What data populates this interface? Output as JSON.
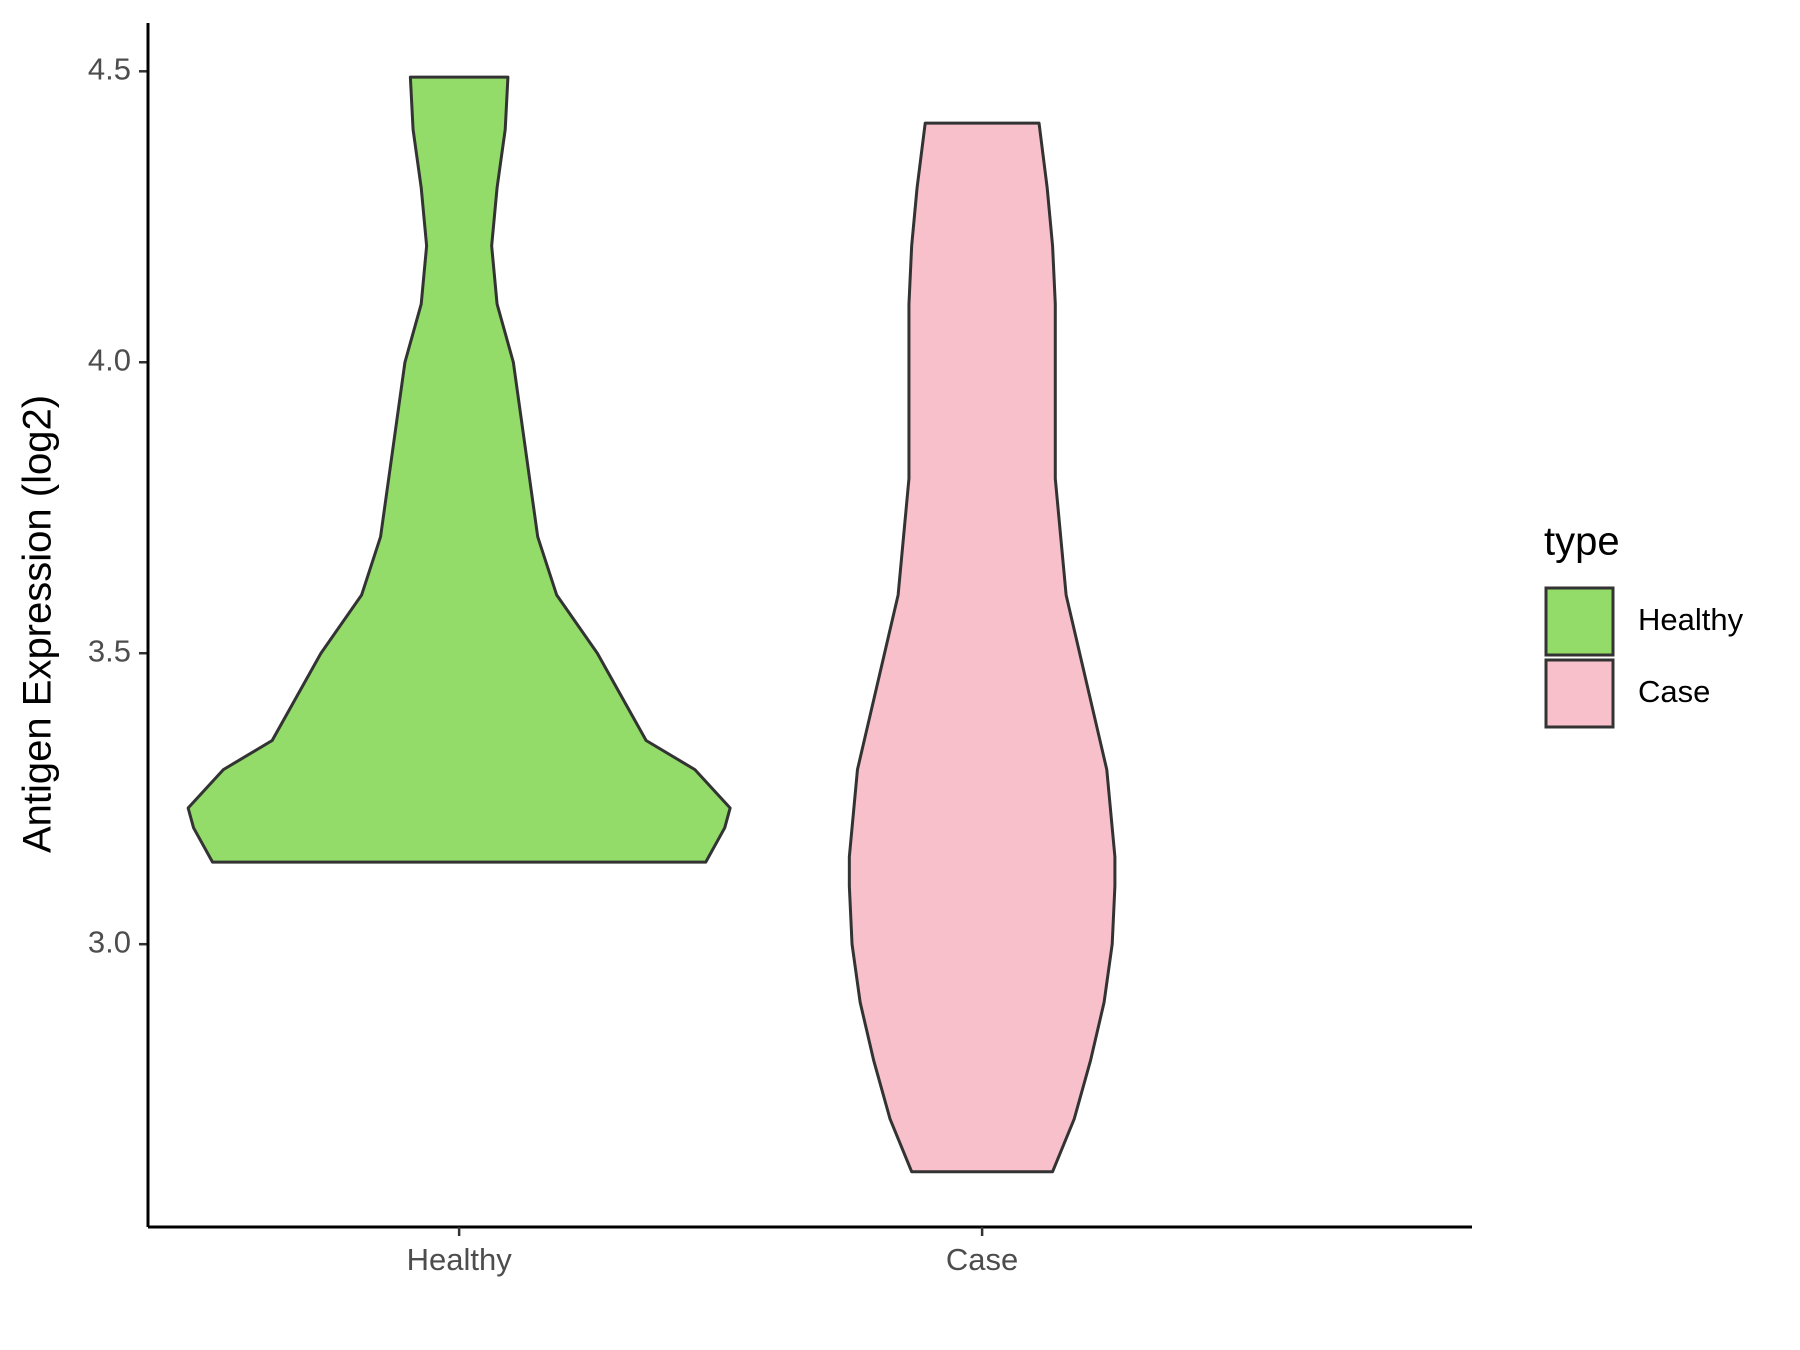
{
  "chart_data": {
    "type": "violin",
    "y_label": "Antigen Expression (log2)",
    "categories": [
      "Healthy",
      "Case"
    ],
    "legend_title": "type",
    "ylim": [
      2.514,
      4.583
    ],
    "yticks": [
      {
        "value": 3,
        "label": "3.0"
      },
      {
        "value": 3.5,
        "label": "3.5"
      },
      {
        "value": 4,
        "label": "4.0"
      },
      {
        "value": 4.5,
        "label": "4.5"
      }
    ],
    "series": [
      {
        "name": "Healthy",
        "color": "#93dc6a",
        "y": [
          3.141,
          3.2,
          3.234,
          3.3,
          3.35,
          3.5,
          3.6,
          3.7,
          3.8,
          3.9,
          4.0,
          4.1,
          4.2,
          4.3,
          4.4,
          4.49
        ],
        "width": [
          0.91,
          0.98,
          1.0,
          0.87,
          0.69,
          0.51,
          0.36,
          0.29,
          0.26,
          0.23,
          0.2,
          0.14,
          0.12,
          0.14,
          0.17,
          0.18
        ]
      },
      {
        "name": "Case",
        "color": "#f7c0cb",
        "y": [
          2.609,
          2.7,
          2.8,
          2.9,
          3.0,
          3.1,
          3.15,
          3.3,
          3.4,
          3.5,
          3.6,
          3.7,
          3.8,
          3.9,
          4.0,
          4.1,
          4.2,
          4.3,
          4.411
        ],
        "width": [
          0.26,
          0.34,
          0.4,
          0.45,
          0.48,
          0.49,
          0.49,
          0.46,
          0.41,
          0.36,
          0.31,
          0.29,
          0.27,
          0.27,
          0.27,
          0.27,
          0.26,
          0.24,
          0.21
        ]
      }
    ]
  }
}
